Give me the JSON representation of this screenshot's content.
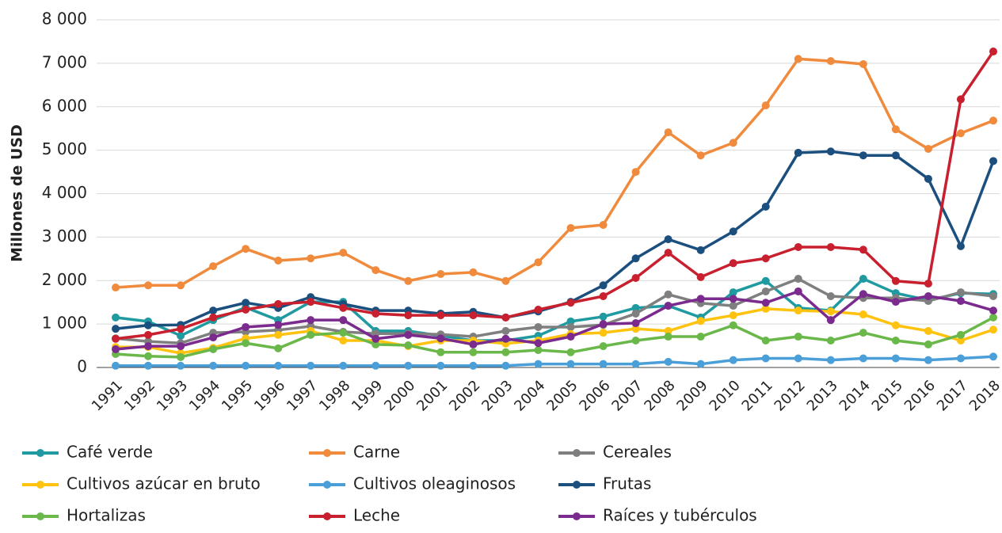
{
  "chart_data": {
    "type": "line",
    "y_label": "Millones de USD",
    "categories": [
      "1991",
      "1992",
      "1993",
      "1994",
      "1995",
      "1996",
      "1997",
      "1998",
      "1999",
      "2000",
      "2001",
      "2002",
      "2003",
      "2004",
      "2005",
      "2006",
      "2007",
      "2008",
      "2009",
      "2010",
      "2011",
      "2012",
      "2013",
      "2014",
      "2015",
      "2016",
      "2017",
      "2018"
    ],
    "ylim": [
      0,
      8000
    ],
    "yticks": [
      0,
      {
        "value": 1000,
        "label": "1 000"
      },
      {
        "value": 2000,
        "label": "2 000"
      },
      {
        "value": 3000,
        "label": "3 000"
      },
      {
        "value": 4000,
        "label": "4 000"
      },
      {
        "value": 5000,
        "label": "5 000"
      },
      {
        "value": 6000,
        "label": "6 000"
      },
      {
        "value": 7000,
        "label": "7 000"
      },
      {
        "value": 8000,
        "label": "8 000"
      }
    ],
    "grid": true,
    "legend": "bottom",
    "series": [
      {
        "name": "Café verde",
        "color": "#1e9aa0",
        "values": [
          1150,
          1060,
          730,
          1090,
          1380,
          1090,
          1510,
          1510,
          840,
          840,
          730,
          620,
          620,
          730,
          1060,
          1170,
          1370,
          1420,
          1150,
          1730,
          1990,
          1370,
          1310,
          2040,
          1710,
          1550,
          1710,
          1690
        ]
      },
      {
        "name": "Carne",
        "color": "#f08a3c",
        "values": [
          1840,
          1890,
          1890,
          2330,
          2730,
          2460,
          2510,
          2640,
          2240,
          1990,
          2150,
          2190,
          1990,
          2420,
          3210,
          3280,
          4500,
          5410,
          4880,
          5170,
          6030,
          7100,
          7050,
          6980,
          5480,
          5030,
          5390,
          5680
        ]
      },
      {
        "name": "Cereales",
        "color": "#7f7f7f",
        "values": [
          670,
          600,
          560,
          800,
          820,
          860,
          950,
          820,
          780,
          780,
          760,
          710,
          840,
          930,
          930,
          980,
          1240,
          1680,
          1480,
          1420,
          1750,
          2040,
          1640,
          1600,
          1600,
          1530,
          1730,
          1640
        ]
      },
      {
        "name": "Cultivos azúcar en bruto",
        "color": "#ffc20e",
        "values": [
          470,
          470,
          330,
          450,
          670,
          750,
          840,
          620,
          620,
          490,
          620,
          620,
          550,
          620,
          770,
          800,
          890,
          840,
          1070,
          1200,
          1350,
          1310,
          1290,
          1220,
          970,
          840,
          620,
          870
        ]
      },
      {
        "name": "Cultivos oleaginosos",
        "color": "#4a9fd8",
        "values": [
          40,
          40,
          40,
          40,
          40,
          40,
          40,
          40,
          40,
          40,
          40,
          40,
          40,
          80,
          80,
          80,
          80,
          130,
          80,
          170,
          210,
          210,
          170,
          210,
          210,
          170,
          210,
          250
        ]
      },
      {
        "name": "Frutas",
        "color": "#1b4f7e",
        "values": [
          890,
          970,
          980,
          1310,
          1490,
          1370,
          1620,
          1460,
          1310,
          1310,
          1240,
          1280,
          1150,
          1290,
          1510,
          1890,
          2510,
          2950,
          2700,
          3130,
          3700,
          4940,
          4970,
          4880,
          4880,
          4340,
          2790,
          4750
        ]
      },
      {
        "name": "Hortalizas",
        "color": "#6ab74a",
        "values": [
          310,
          260,
          240,
          420,
          560,
          440,
          750,
          800,
          530,
          510,
          350,
          350,
          350,
          400,
          350,
          490,
          620,
          710,
          710,
          970,
          620,
          710,
          620,
          800,
          620,
          530,
          750,
          1150
        ]
      },
      {
        "name": "Leche",
        "color": "#c8202f",
        "values": [
          660,
          750,
          890,
          1150,
          1330,
          1460,
          1510,
          1370,
          1240,
          1200,
          1200,
          1200,
          1150,
          1330,
          1490,
          1640,
          2060,
          2640,
          2080,
          2400,
          2510,
          2770,
          2770,
          2710,
          1990,
          1930,
          6170,
          7270
        ]
      },
      {
        "name": "Raíces y tubérculos",
        "color": "#7b2a8e",
        "values": [
          420,
          490,
          490,
          690,
          930,
          980,
          1090,
          1090,
          660,
          750,
          670,
          530,
          660,
          560,
          710,
          1000,
          1020,
          1420,
          1580,
          1580,
          1490,
          1750,
          1090,
          1690,
          1510,
          1640,
          1530,
          1310
        ]
      }
    ]
  }
}
